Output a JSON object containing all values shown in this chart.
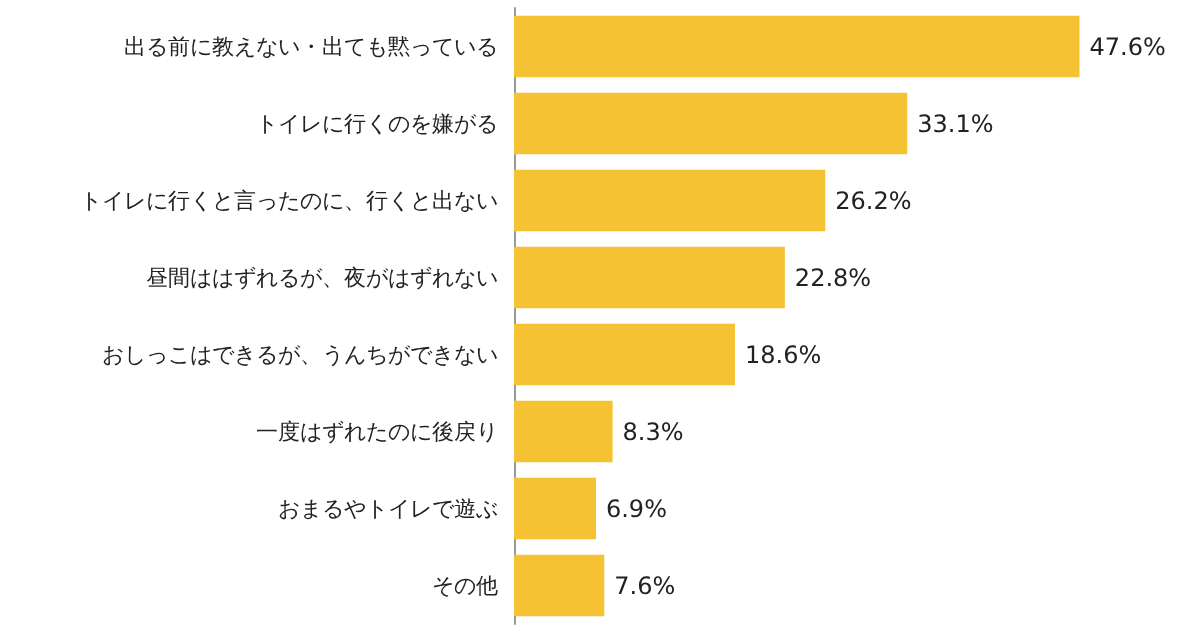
{
  "chart_data": {
    "type": "bar",
    "orientation": "horizontal",
    "categories": [
      "出る前に教えない・出ても黙っている",
      "トイレに行くのを嫌がる",
      "トイレに行くと言ったのに、行くと出ない",
      "昼間ははずれるが、夜がはずれない",
      "おしっこはできるが、うんちができない",
      "一度はずれたのに後戻り",
      "おまるやトイレで遊ぶ",
      "その他"
    ],
    "values": [
      47.6,
      33.1,
      26.2,
      22.8,
      18.6,
      8.3,
      6.9,
      7.6
    ],
    "value_labels": [
      "47.6%",
      "33.1%",
      "26.2%",
      "22.8%",
      "18.6%",
      "8.3%",
      "6.9%",
      "7.6%"
    ],
    "color": "#f4c232"
  }
}
